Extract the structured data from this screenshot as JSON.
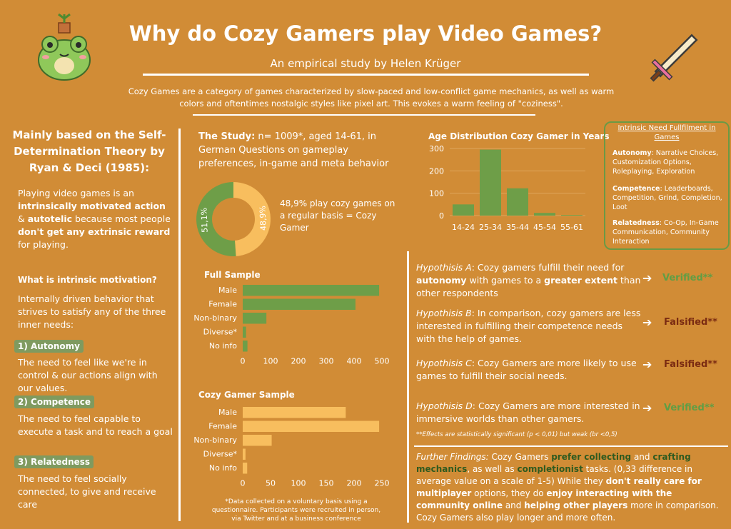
{
  "header": {
    "title": "Why do Cozy Gamers play Video Games?",
    "subtitle": "An empirical study by Helen Krüger",
    "intro": "Cozy Games are a category of games characterized by slow-paced and low-conflict game mechanics, as well as warm colors and oftentimes nostalgic styles like pixel art. This evokes a warm feeling of \"coziness\"."
  },
  "left": {
    "heading": "Mainly based on the Self-Determination Theory by Ryan & Deci (1985):",
    "p1_a": "Playing video games is  an ",
    "p1_b": "intrinsically motivated action",
    "p1_c": " & ",
    "p1_d": "autotelic",
    "p1_e": " because most people ",
    "p1_f": "don't get any extrinsic reward",
    "p1_g": " for playing.",
    "sub_heading": "What is intrinsic motivation?",
    "p2": "Internally driven behavior that strives to satisfy any of the three inner needs:",
    "need1_label": "1) Autonomy",
    "need1_text": "The need to feel like we're in control & our actions align with our values.",
    "need2_label": "2) Competence",
    "need2_text": "The need to feel capable to execute a task and to reach a goal",
    "need3_label": "3) Relatedness",
    "need3_text": "The need to feel socially connected, to give and receive care"
  },
  "study": {
    "label": "The Study:",
    "text": " n= 1009*, aged 14-61, in German Questions on gameplay preferences, in-game and meta behavior",
    "pie_note": "48,9% play cozy games on a regular basis = Cozy Gamer",
    "data_note": "*Data collected on a voluntary basis using a questionnaire. Participants were recruited in person, via Twitter and at a business conference"
  },
  "colors": {
    "bg": "#D18C36",
    "green": "#6E9E48",
    "yellow": "#F8BE5E",
    "dark_red": "#7B2C12"
  },
  "box": {
    "title": "Intrinsic Need Fullfilment in Games",
    "autonomy_label": "Autonomy",
    "autonomy_text": ": Narrative Choices, Customization Options, Roleplaying, Exploration",
    "competence_label": "Competence",
    "competence_text": ": Leaderboards, Competition, Grind, Completion, Loot",
    "relatedness_label": "Relatedness",
    "relatedness_text": ": Co-Op, In-Game Communication, Community Interaction"
  },
  "hypotheses": {
    "a_label": "Hypothisis A",
    "a_1": ": Cozy gamers fulfill their need for ",
    "a_2": "autonomy",
    "a_3": " with games to a ",
    "a_4": "greater extent",
    "a_5": " than other respondents",
    "a_verdict": "Verified**",
    "b_label": "Hypothisis B",
    "b_text": ": In comparison, cozy gamers are less interested in fulfilling their competence needs with the help of games.",
    "b_verdict": "Falsified**",
    "c_label": "Hypothisis C",
    "c_text": ": Cozy Gamers are more likely to use games to fulfill their social needs.",
    "c_verdict": "Falsified**",
    "d_label": "Hypothisis D",
    "d_text": ": Cozy Gamers are more interested in immersive worlds than other gamers.",
    "d_verdict": "Verified**",
    "footnote": "**Effects are statistically significant (p < 0,01) but weak (br <0,5)",
    "arrow": "➔"
  },
  "findings": {
    "label": "Further Findings:",
    "t1": " Cozy Gamers ",
    "b1": "prefer collecting",
    "t2": " and ",
    "b2": "crafting mechanics",
    "t3": ", as well as ",
    "b3": "completionist",
    "t4": " tasks. (0,33 difference in average value on a scale of 1-5) While they ",
    "b4": "don't really care for multiplayer",
    "t5": " options, they do ",
    "b5": "enjoy interacting with the community online",
    "t6": " and ",
    "b6": "helping other players",
    "t7": " more in comparison. Cozy Gamers also play longer and more often."
  },
  "chart_data": [
    {
      "type": "pie",
      "donut": true,
      "labels": [
        "51,1%",
        "48,9%"
      ],
      "values": [
        51.1,
        48.9
      ],
      "colors": [
        "#6E9E48",
        "#F8BE5E"
      ]
    },
    {
      "type": "bar",
      "orientation": "vertical",
      "title": "Age Distribution Cozy Gamer in Years",
      "categories": [
        "14-24",
        "25-34",
        "35-44",
        "45-54",
        "55-61"
      ],
      "values": [
        50,
        295,
        122,
        12,
        3
      ],
      "yticks": [
        0,
        100,
        200,
        300
      ],
      "ylim": [
        0,
        300
      ],
      "color": "#6E9E48"
    },
    {
      "type": "bar",
      "orientation": "horizontal",
      "title": "Full Sample",
      "categories": [
        "Male",
        "Female",
        "Non-binary",
        "Diverse*",
        "No info"
      ],
      "values": [
        490,
        405,
        85,
        12,
        17
      ],
      "xticks": [
        0,
        100,
        200,
        300,
        400,
        500
      ],
      "xlim": [
        0,
        500
      ],
      "color": "#6E9E48"
    },
    {
      "type": "bar",
      "orientation": "horizontal",
      "title": "Cozy Gamer Sample",
      "categories": [
        "Male",
        "Female",
        "Non-binary",
        "Diverse*",
        "No info"
      ],
      "values": [
        185,
        245,
        52,
        5,
        8
      ],
      "xticks": [
        0,
        50,
        100,
        150,
        200,
        250
      ],
      "xlim": [
        0,
        250
      ],
      "color": "#F8BE5E"
    }
  ]
}
